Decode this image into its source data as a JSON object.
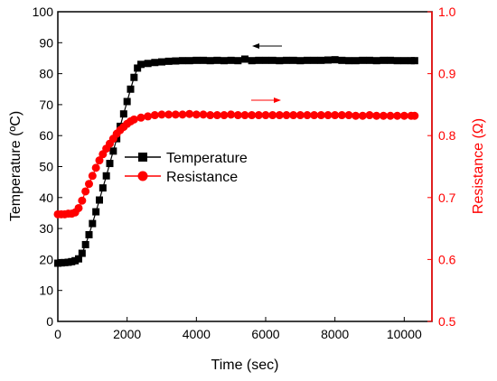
{
  "chart_data": {
    "type": "scatter",
    "title": "",
    "xlabel": "Time (sec)",
    "ylabel_left": "Temperature (ºC)",
    "ylabel_right": "Resistance (Ω)",
    "xlim": [
      0,
      10800
    ],
    "ylim_left": [
      0,
      100
    ],
    "ylim_right": [
      0.5,
      1.0
    ],
    "x_ticks": [
      "0",
      "2000",
      "4000",
      "6000",
      "8000",
      "10000"
    ],
    "x_tick_values": [
      0,
      2000,
      4000,
      6000,
      8000,
      10000
    ],
    "y_left_ticks": [
      "0",
      "10",
      "20",
      "30",
      "40",
      "50",
      "60",
      "70",
      "80",
      "90",
      "100"
    ],
    "y_left_tick_values": [
      0,
      10,
      20,
      30,
      40,
      50,
      60,
      70,
      80,
      90,
      100
    ],
    "y_right_ticks": [
      "0.5",
      "0.6",
      "0.7",
      "0.8",
      "0.9",
      "1.0"
    ],
    "y_right_tick_values": [
      0.5,
      0.6,
      0.7,
      0.8,
      0.9,
      1.0
    ],
    "grid": false,
    "legend_placement": "center-left",
    "series": [
      {
        "name": "Temperature",
        "axis": "left",
        "color": "#000000",
        "marker": "square",
        "x": [
          0,
          100,
          200,
          300,
          400,
          500,
          600,
          700,
          800,
          900,
          1000,
          1100,
          1200,
          1300,
          1400,
          1500,
          1600,
          1700,
          1800,
          1900,
          2000,
          2100,
          2200,
          2300,
          2400,
          2600,
          2800,
          3000,
          3200,
          3400,
          3600,
          3800,
          4000,
          4200,
          4400,
          4600,
          4800,
          5000,
          5200,
          5400,
          5600,
          5800,
          6000,
          6200,
          6400,
          6600,
          6800,
          7000,
          7200,
          7400,
          7600,
          7800,
          8000,
          8200,
          8400,
          8600,
          8800,
          9000,
          9200,
          9400,
          9600,
          9800,
          10000,
          10200,
          10300
        ],
        "y": [
          18.8,
          18.9,
          19.0,
          19.1,
          19.3,
          19.6,
          20.2,
          22.0,
          24.8,
          28.0,
          31.6,
          35.4,
          39.2,
          43.1,
          47.0,
          51.0,
          55.0,
          59.0,
          63.0,
          67.0,
          71.0,
          75.0,
          78.8,
          81.8,
          83.0,
          83.3,
          83.6,
          83.8,
          84.0,
          84.1,
          84.2,
          84.2,
          84.3,
          84.3,
          84.2,
          84.3,
          84.2,
          84.3,
          84.2,
          84.7,
          84.2,
          84.3,
          84.3,
          84.3,
          84.2,
          84.3,
          84.3,
          84.2,
          84.3,
          84.3,
          84.3,
          84.4,
          84.5,
          84.3,
          84.2,
          84.2,
          84.3,
          84.3,
          84.2,
          84.3,
          84.3,
          84.2,
          84.2,
          84.2,
          84.2
        ]
      },
      {
        "name": "Resistance",
        "axis": "right",
        "color": "#ff0000",
        "marker": "circle",
        "x": [
          0,
          100,
          200,
          300,
          400,
          500,
          600,
          700,
          800,
          900,
          1000,
          1100,
          1200,
          1300,
          1400,
          1500,
          1600,
          1700,
          1800,
          1900,
          2000,
          2100,
          2200,
          2400,
          2600,
          2800,
          3000,
          3200,
          3400,
          3600,
          3800,
          4000,
          4200,
          4400,
          4600,
          4800,
          5000,
          5200,
          5400,
          5600,
          5800,
          6000,
          6200,
          6400,
          6600,
          6800,
          7000,
          7200,
          7400,
          7600,
          7800,
          8000,
          8200,
          8400,
          8600,
          8800,
          9000,
          9200,
          9400,
          9600,
          9800,
          10000,
          10200,
          10300
        ],
        "y": [
          0.673,
          0.673,
          0.673,
          0.674,
          0.674,
          0.676,
          0.683,
          0.695,
          0.71,
          0.722,
          0.735,
          0.748,
          0.76,
          0.77,
          0.779,
          0.787,
          0.795,
          0.803,
          0.809,
          0.814,
          0.819,
          0.823,
          0.826,
          0.829,
          0.831,
          0.833,
          0.834,
          0.834,
          0.834,
          0.834,
          0.835,
          0.834,
          0.834,
          0.833,
          0.833,
          0.833,
          0.834,
          0.833,
          0.833,
          0.833,
          0.833,
          0.833,
          0.833,
          0.833,
          0.833,
          0.833,
          0.833,
          0.833,
          0.833,
          0.833,
          0.833,
          0.833,
          0.833,
          0.833,
          0.832,
          0.832,
          0.833,
          0.832,
          0.832,
          0.832,
          0.832,
          0.832,
          0.832,
          0.832
        ]
      }
    ]
  }
}
